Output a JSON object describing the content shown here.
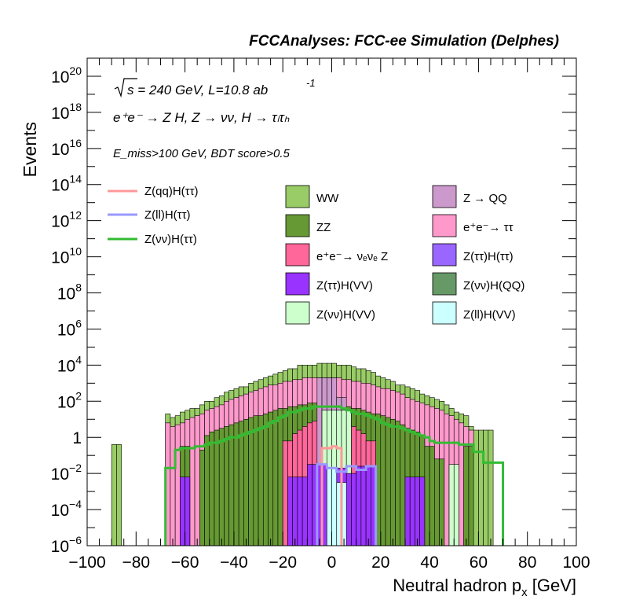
{
  "header": {
    "title": "FCCAnalyses: FCC-ee Simulation (Delphes)"
  },
  "chart_data": {
    "type": "histogram",
    "xlabel": "Neutral hadron p",
    "xlabel_sub": "x",
    "xlabel_unit": "[GeV]",
    "ylabel": "Events",
    "xlim": [
      -100,
      100
    ],
    "ylim": [
      1e-06,
      1e+21
    ],
    "y_scale": "log",
    "x_ticks": [
      "−100",
      "−80",
      "−60",
      "−40",
      "−20",
      "0",
      "20",
      "40",
      "60",
      "80",
      "100"
    ],
    "y_ticks": [
      {
        "base": "10",
        "exp": "20"
      },
      {
        "base": "10",
        "exp": "18"
      },
      {
        "base": "10",
        "exp": "16"
      },
      {
        "base": "10",
        "exp": "14"
      },
      {
        "base": "10",
        "exp": "12"
      },
      {
        "base": "10",
        "exp": "10"
      },
      {
        "base": "10",
        "exp": "8"
      },
      {
        "base": "10",
        "exp": "6"
      },
      {
        "base": "10",
        "exp": "4"
      },
      {
        "base": "10",
        "exp": "2"
      },
      {
        "base": "1",
        "exp": ""
      },
      {
        "base": "10",
        "exp": "−2"
      },
      {
        "base": "10",
        "exp": "−4"
      },
      {
        "base": "10",
        "exp": "−6"
      }
    ],
    "annotations": {
      "sqrt_s": "s = 240 GeV, L=10.8 ab",
      "lumi_exp": "-1",
      "process": "e⁺e⁻ → Z H, Z → νν, H → τₗτₕ",
      "cuts": "E_miss>100 GeV, BDT score>0.5"
    },
    "bin_edges": [
      -90,
      -88,
      -86,
      -84,
      -82,
      -80,
      -78,
      -76,
      -74,
      -72,
      -70,
      -68,
      -66,
      -64,
      -62,
      -60,
      -58,
      -56,
      -54,
      -52,
      -50,
      -48,
      -46,
      -44,
      -42,
      -40,
      -38,
      -36,
      -34,
      -32,
      -30,
      -28,
      -26,
      -24,
      -22,
      -20,
      -18,
      -16,
      -14,
      -12,
      -10,
      -8,
      -6,
      -4,
      -2,
      0,
      2,
      4,
      6,
      8,
      10,
      12,
      14,
      16,
      18,
      20,
      22,
      24,
      26,
      28,
      30,
      32,
      34,
      36,
      38,
      40,
      42,
      44,
      46,
      48,
      50,
      52,
      54,
      56,
      58,
      60,
      62,
      64,
      66,
      68,
      70,
      72,
      74,
      76,
      78,
      80
    ],
    "stack_series": [
      {
        "name": "WW",
        "color": "#99cc66",
        "log10_totals": [
          -0.4,
          -0.4,
          -7,
          -7,
          -7,
          -7,
          -7,
          -7,
          -7,
          -7,
          -7,
          1.3,
          1.1,
          1.2,
          1.4,
          1.5,
          1.6,
          1.6,
          1.8,
          2.0,
          2.0,
          2.2,
          2.3,
          2.5,
          2.6,
          2.7,
          2.8,
          2.8,
          3.0,
          3.1,
          3.2,
          3.3,
          3.4,
          3.5,
          3.6,
          3.7,
          3.8,
          3.8,
          4.0,
          4.0,
          4.0,
          4.0,
          4.1,
          4.1,
          4.1,
          4.1,
          4.0,
          4.0,
          4.0,
          3.9,
          3.8,
          3.8,
          3.7,
          3.6,
          3.4,
          3.3,
          3.2,
          3.1,
          2.9,
          2.9,
          2.8,
          2.7,
          2.6,
          2.4,
          2.3,
          2.2,
          2.1,
          2.0,
          1.8,
          1.6,
          1.4,
          1.3,
          1.2,
          0.6,
          0.4,
          0.4,
          0.4,
          0.4,
          -7,
          -7,
          -7
        ]
      },
      {
        "name": "e⁺e⁻→ ττ",
        "color": "#ff99cc",
        "log10_totals": [
          -7,
          -7,
          -7,
          -7,
          -7,
          -7,
          -7,
          -7,
          -7,
          -7,
          -7,
          0.8,
          0.6,
          0.7,
          0.8,
          1.0,
          1.1,
          1.2,
          1.3,
          1.5,
          1.6,
          1.7,
          1.8,
          2.0,
          2.1,
          2.2,
          2.3,
          2.4,
          2.5,
          2.6,
          2.7,
          2.8,
          2.9,
          2.9,
          3.0,
          3.1,
          3.1,
          3.2,
          3.2,
          3.3,
          3.3,
          3.3,
          3.3,
          3.3,
          3.3,
          3.3,
          3.3,
          3.2,
          3.2,
          3.1,
          3.1,
          3.0,
          3.0,
          2.9,
          2.8,
          2.7,
          2.7,
          2.6,
          2.5,
          2.4,
          2.2,
          2.1,
          2.0,
          1.9,
          1.8,
          1.7,
          1.6,
          1.5,
          1.3,
          1.2,
          1.0,
          0.8,
          0.6,
          0.4,
          -7,
          -7,
          -7,
          -7,
          -7,
          -7,
          -7
        ]
      },
      {
        "name": "ZZ",
        "color": "#669933",
        "log10_totals": [
          -7,
          -7,
          -7,
          -7,
          -7,
          -7,
          -7,
          -7,
          -7,
          -7,
          -7,
          -7,
          -7,
          -7,
          -0.5,
          -0.5,
          -7,
          -7,
          -0.7,
          0.1,
          0.3,
          0.4,
          0.5,
          0.6,
          0.7,
          0.8,
          0.9,
          1.0,
          1.1,
          1.2,
          1.2,
          1.3,
          1.4,
          1.5,
          1.6,
          1.6,
          1.7,
          1.7,
          1.8,
          1.8,
          1.9,
          1.9,
          1.8,
          1.8,
          1.8,
          1.8,
          1.8,
          1.7,
          1.7,
          1.6,
          1.6,
          1.5,
          1.4,
          1.3,
          1.3,
          1.2,
          1.1,
          1.0,
          0.9,
          0.7,
          0.5,
          0.4,
          0.3,
          0.1,
          -0.5,
          -0.5,
          -1.2,
          -1.2,
          -7,
          -7,
          -7,
          -7,
          -0.5,
          -0.5,
          -7,
          -7,
          -7,
          -7,
          -7,
          -7,
          -7
        ]
      },
      {
        "name": "e⁺e⁻→ νₑνₑ Z",
        "color": "#ff6699",
        "log10_totals": [
          -7,
          -7,
          -7,
          -7,
          -7,
          -7,
          -7,
          -7,
          -7,
          -7,
          -7,
          -7,
          -7,
          -7,
          -7,
          -7,
          -7,
          -7,
          -7,
          -7,
          -7,
          -7,
          -7,
          -7,
          -7,
          -7,
          -7,
          -7,
          -7,
          -7,
          -7,
          -7,
          -7,
          -7,
          -7,
          -0.2,
          -0.2,
          0.2,
          0.4,
          0.6,
          0.8,
          0.9,
          1.1,
          1.1,
          1.2,
          1.2,
          1.1,
          0.9,
          0.8,
          0.6,
          0.4,
          0.2,
          -0.2,
          -0.2,
          -7,
          -7,
          -7,
          -7,
          -7,
          -7,
          -7,
          -7,
          -7,
          -7,
          -7,
          -7,
          -7,
          -7,
          -7,
          -7,
          -7,
          -7,
          -7,
          -7,
          -7,
          -7,
          -7,
          -7,
          -7,
          -7,
          -7
        ]
      },
      {
        "name": "Z → QQ",
        "color": "#cc99cc",
        "log10_totals": [
          -7,
          -7,
          -7,
          -7,
          -7,
          -7,
          -7,
          -7,
          -7,
          -7,
          -7,
          -7,
          -7,
          -7,
          -7,
          -7,
          -7,
          -7,
          -7,
          -7,
          -7,
          -7,
          -7,
          -7,
          -7,
          -7,
          -7,
          -7,
          -7,
          -7,
          -7,
          -7,
          -7,
          -7,
          -7,
          -7,
          -7,
          -7,
          -7,
          -7,
          -7,
          -7,
          3.3,
          3.3,
          3.3,
          3.3,
          2.2,
          2.2,
          -7,
          -7,
          -7,
          -7,
          -7,
          -7,
          -7,
          -7,
          -7,
          -7,
          -7,
          -7,
          -7,
          -7,
          -7,
          -7,
          -7,
          -7,
          -7,
          -7,
          -7,
          -7,
          -7,
          -7,
          -7,
          -7,
          -7,
          -7,
          -7,
          -7,
          -7,
          -7,
          -7
        ]
      },
      {
        "name": "Z(νν)H(VV)",
        "color": "#ccffcc",
        "log10_totals": [
          -7,
          -7,
          -7,
          -7,
          -7,
          -7,
          -7,
          -7,
          -7,
          -7,
          -7,
          -7,
          -7,
          -7,
          -7,
          -7,
          -7,
          -7,
          -7,
          -7,
          -7,
          -7,
          -7,
          -7,
          -7,
          -7,
          -7,
          -7,
          -7,
          -7,
          -7,
          -7,
          -7,
          -7,
          -7,
          -7,
          -7,
          -7,
          -7,
          -7,
          -7,
          -7,
          -7,
          1.5,
          1.5,
          1.5,
          1.5,
          1.5,
          1.5,
          -7,
          -7,
          -7,
          -7,
          -7,
          -7,
          -7,
          -7,
          -7,
          -7,
          -7,
          -7,
          -7,
          -7,
          -7,
          -7,
          -7,
          -7,
          -7,
          -7,
          -1.5,
          -1.5,
          -7,
          -7,
          -7,
          -7,
          -7,
          -7,
          -7,
          -7,
          -7,
          -7
        ]
      },
      {
        "name": "Z(ττ)H(VV)",
        "color": "#9933ff",
        "log10_totals": [
          -7,
          -7,
          -7,
          -7,
          -7,
          -7,
          -7,
          -7,
          -7,
          -7,
          -7,
          -7,
          -7,
          -7,
          -2.2,
          -2.2,
          -7,
          -7,
          -7,
          -7,
          -7,
          -7,
          -7,
          -7,
          -7,
          -7,
          -7,
          -7,
          -7,
          -7,
          -7,
          -7,
          -7,
          -7,
          -7,
          -7,
          -2.2,
          -2.2,
          -2.2,
          -2.2,
          -1.5,
          -1.5,
          -1.5,
          -1.5,
          -1.7,
          -1.7,
          -1.7,
          -1.7,
          -2.0,
          -2.0,
          -1.6,
          -1.6,
          -1.6,
          -1.6,
          -7,
          -7,
          -7,
          -7,
          -7,
          -7,
          -2.2,
          -2.2,
          -2.2,
          -2.2,
          -7,
          -7,
          -7,
          -7,
          -7,
          -7,
          -7,
          -7,
          -7,
          -7,
          -7,
          -7,
          -7,
          -7,
          -7,
          -7,
          -7
        ]
      },
      {
        "name": "Z(ll)H(VV)",
        "color": "#ccffff",
        "log10_totals": [
          -7,
          -7,
          -7,
          -7,
          -7,
          -7,
          -7,
          -7,
          -7,
          -7,
          -7,
          -7,
          -7,
          -7,
          -7,
          -7,
          -7,
          -7,
          -7,
          -7,
          -7,
          -7,
          -7,
          -7,
          -7,
          -7,
          -7,
          -7,
          -7,
          -7,
          -7,
          -7,
          -7,
          -7,
          -7,
          -7,
          -7,
          -7,
          -7,
          -7,
          -7,
          -7,
          -7,
          -7,
          -1.7,
          -1.7,
          -2.5,
          -2.5,
          -7,
          -7,
          -7,
          -7,
          -7,
          -7,
          -7,
          -7,
          -7,
          -7,
          -7,
          -7,
          -7,
          -7,
          -7,
          -7,
          -7,
          -7,
          -7,
          -7,
          -7,
          -7,
          -7,
          -7,
          -7,
          -7,
          -7,
          -7,
          -7,
          -7,
          -7,
          -7,
          -7
        ]
      },
      {
        "name": "Z(ττ)H(ττ)",
        "color": "#9966ff",
        "log10_totals": []
      },
      {
        "name": "Z(νν)H(QQ)",
        "color": "#669966",
        "log10_totals": []
      }
    ],
    "line_series": [
      {
        "name": "Z(qq)H(ττ)",
        "color": "#ff9999",
        "log10_values": [
          -7,
          -7,
          -7,
          -7,
          -7,
          -7,
          -7,
          -7,
          -7,
          -7,
          -7,
          -7,
          -7,
          -7,
          -7,
          -7,
          -7,
          -7,
          -7,
          -7,
          -7,
          -7,
          -7,
          -7,
          -7,
          -7,
          -7,
          -7,
          -7,
          -7,
          -7,
          -7,
          -7,
          -7,
          -7,
          -7,
          -7,
          -7,
          -7,
          -7,
          -7,
          -7,
          -7,
          -0.6,
          -0.6,
          -0.5,
          -0.6,
          -7,
          -7,
          -7,
          -7,
          -7,
          -7,
          -7,
          -7,
          -7,
          -7,
          -7,
          -7,
          -7,
          -7,
          -7,
          -7,
          -7,
          -7,
          -7,
          -7,
          -7,
          -7,
          -7,
          -7,
          -7,
          -7,
          -7,
          -7,
          -7,
          -7,
          -7,
          -7,
          -7,
          -7
        ]
      },
      {
        "name": "Z(ll)H(ττ)",
        "color": "#9999ff",
        "log10_values": [
          -7,
          -7,
          -7,
          -7,
          -7,
          -7,
          -7,
          -7,
          -7,
          -7,
          -7,
          -7,
          -7,
          -7,
          -7,
          -7,
          -7,
          -7,
          -7,
          -7,
          -7,
          -7,
          -7,
          -7,
          -7,
          -7,
          -7,
          -7,
          -7,
          -7,
          -7,
          -7,
          -7,
          -7,
          -7,
          -7,
          -7,
          -7,
          -7,
          -7,
          -7,
          -7,
          -1.5,
          -1.5,
          -1.7,
          -1.7,
          -1.9,
          -1.9,
          -1.6,
          -1.6,
          -1.8,
          -1.8,
          -1.6,
          -1.6,
          -7,
          -7,
          -7,
          -7,
          -7,
          -7,
          -7,
          -7,
          -7,
          -7,
          -7,
          -7,
          -7,
          -7,
          -7,
          -7,
          -7,
          -7,
          -7,
          -7,
          -7,
          -7,
          -7,
          -7,
          -7,
          -7,
          -7
        ]
      },
      {
        "name": "Z(νν)H(ττ)",
        "color": "#33bb33",
        "log10_values": [
          -7,
          -7,
          -7,
          -7,
          -7,
          -7,
          -7,
          -7,
          -7,
          -7,
          -7,
          -1.7,
          -1.7,
          -0.7,
          -0.6,
          -0.6,
          -0.6,
          -0.5,
          -0.5,
          -0.4,
          -0.3,
          -0.3,
          -0.2,
          -0.1,
          0.0,
          0.0,
          0.1,
          0.2,
          0.3,
          0.4,
          0.5,
          0.6,
          0.8,
          0.9,
          1.1,
          1.2,
          1.4,
          1.4,
          1.5,
          1.6,
          1.6,
          1.7,
          1.7,
          1.7,
          1.7,
          1.7,
          1.7,
          1.6,
          1.5,
          1.4,
          1.3,
          1.3,
          1.2,
          1.1,
          1.0,
          0.8,
          0.7,
          0.6,
          0.6,
          0.5,
          0.4,
          0.3,
          0.2,
          0.1,
          0.0,
          -0.2,
          -0.3,
          -0.3,
          -0.3,
          -0.3,
          -0.3,
          -0.4,
          -0.4,
          -0.4,
          -0.8,
          -0.8,
          -1.4,
          -1.4,
          -1.4,
          -1.4,
          -7
        ]
      }
    ]
  }
}
